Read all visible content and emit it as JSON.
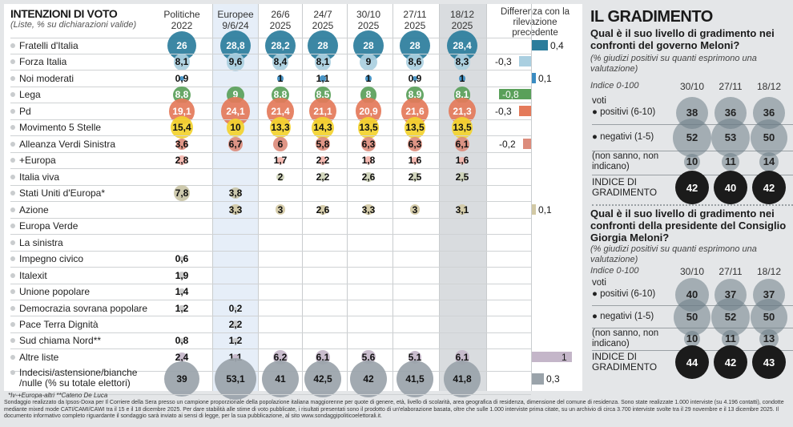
{
  "left": {
    "title": "INTENZIONI DI VOTO",
    "subtitle": "(Liste, % su dichiarazioni valide)",
    "diff_header": "Differenza con la rilevazione precedente",
    "footnote": "*Iv-+Europa-altri **Cateno De Luca"
  },
  "chart_data": {
    "type": "bubble-table",
    "columns": [
      {
        "l1": "Politiche",
        "l2": "2022"
      },
      {
        "l1": "Europee",
        "l2": "9/6/24"
      },
      {
        "l1": "26/6",
        "l2": "2025"
      },
      {
        "l1": "24/7",
        "l2": "2025"
      },
      {
        "l1": "30/10",
        "l2": "2025"
      },
      {
        "l1": "27/11",
        "l2": "2025"
      },
      {
        "l1": "18/12",
        "l2": "2025"
      }
    ],
    "rows": [
      {
        "name": "Fratelli d'Italia",
        "color": "#2b7d9c",
        "text": "#fff",
        "values": [
          "26",
          "28,8",
          "28,2",
          "28",
          "28",
          "28",
          "28,4"
        ],
        "diff": "0,4"
      },
      {
        "name": "Forza Italia",
        "color": "#aacfe0",
        "text": "#111",
        "values": [
          "8,1",
          "9,6",
          "8,4",
          "8,1",
          "9",
          "8,6",
          "8,3"
        ],
        "diff": "-0,3"
      },
      {
        "name": "Noi moderati",
        "color": "#3a8cc2",
        "text": "#111",
        "values": [
          "0,9",
          "",
          "1",
          "1,1",
          "1",
          "0,9",
          "1"
        ],
        "diff": "0,1"
      },
      {
        "name": "Lega",
        "color": "#5aa05a",
        "text": "#fff",
        "values": [
          "8,8",
          "9",
          "8,8",
          "8,5",
          "8",
          "8,9",
          "8,1"
        ],
        "diff": "-0,8"
      },
      {
        "name": "Pd",
        "color": "#e47a5a",
        "text": "#fff",
        "values": [
          "19,1",
          "24,1",
          "21,4",
          "21,1",
          "20,9",
          "21,6",
          "21,3"
        ],
        "diff": "-0,3"
      },
      {
        "name": "Movimento 5 Stelle",
        "color": "#f3d22e",
        "text": "#111",
        "values": [
          "15,4",
          "10",
          "13,3",
          "14,3",
          "13,5",
          "13,5",
          "13,5"
        ],
        "diff": ""
      },
      {
        "name": "Alleanza Verdi Sinistra",
        "color": "#dc8c7c",
        "text": "#111",
        "values": [
          "3,6",
          "6,7",
          "6",
          "5,8",
          "6,3",
          "6,3",
          "6,1"
        ],
        "diff": "-0,2"
      },
      {
        "name": "+Europa",
        "color": "#f2b3aa",
        "text": "#111",
        "values": [
          "2,8",
          "",
          "1,7",
          "2,2",
          "1,8",
          "1,6",
          "1,6"
        ],
        "diff": ""
      },
      {
        "name": "Italia viva",
        "color": "#cdd1b6",
        "text": "#111",
        "values": [
          "",
          "",
          "2",
          "2,2",
          "2,6",
          "2,5",
          "2,5"
        ],
        "diff": ""
      },
      {
        "name": "Stati Uniti d'Europa*",
        "color": "#c9c4a6",
        "text": "#111",
        "values": [
          "7,8",
          "3,8",
          "",
          "",
          "",
          "",
          ""
        ],
        "diff": ""
      },
      {
        "name": "Azione",
        "color": "#d2c9a4",
        "text": "#111",
        "values": [
          "",
          "3,3",
          "3",
          "2,6",
          "3,3",
          "3",
          "3,1"
        ],
        "diff": "0,1"
      },
      {
        "name": "Europa Verde",
        "color": "#9cc08a",
        "text": "#111",
        "values": [
          "",
          "",
          "",
          "",
          "",
          "",
          ""
        ],
        "diff": ""
      },
      {
        "name": "La sinistra",
        "color": "#d99090",
        "text": "#111",
        "values": [
          "",
          "",
          "",
          "",
          "",
          "",
          ""
        ],
        "diff": ""
      },
      {
        "name": "Impegno civico",
        "color": "#c8c8c8",
        "text": "#111",
        "values": [
          "0,6",
          "",
          "",
          "",
          "",
          "",
          ""
        ],
        "diff": ""
      },
      {
        "name": "Italexit",
        "color": "#c8c8c8",
        "text": "#111",
        "values": [
          "1,9",
          "",
          "",
          "",
          "",
          "",
          ""
        ],
        "diff": ""
      },
      {
        "name": "Unione popolare",
        "color": "#c8c8c8",
        "text": "#111",
        "values": [
          "1,4",
          "",
          "",
          "",
          "",
          "",
          ""
        ],
        "diff": ""
      },
      {
        "name": "Democrazia sovrana popolare",
        "color": "#c8c8c8",
        "text": "#111",
        "values": [
          "1,2",
          "0,2",
          "",
          "",
          "",
          "",
          ""
        ],
        "diff": ""
      },
      {
        "name": "Pace Terra Dignità",
        "color": "#c8c8c8",
        "text": "#111",
        "values": [
          "",
          "2,2",
          "",
          "",
          "",
          "",
          ""
        ],
        "diff": ""
      },
      {
        "name": "Sud chiama Nord**",
        "color": "#c8c8c8",
        "text": "#111",
        "values": [
          "0,8",
          "1,2",
          "",
          "",
          "",
          "",
          ""
        ],
        "diff": ""
      },
      {
        "name": "Altre liste",
        "color": "#c4b6c9",
        "text": "#111",
        "values": [
          "2,4",
          "1,1",
          "6,2",
          "6,1",
          "5,6",
          "5,1",
          "6,1"
        ],
        "diff": "1"
      },
      {
        "name": "Indecisi/astensione/bianche /nulle (% su totale elettori)",
        "color": "#9aa3aa",
        "text": "#111",
        "values": [
          "39",
          "53,1",
          "41",
          "42,5",
          "42",
          "41,5",
          "41,8"
        ],
        "diff": "0,3"
      }
    ]
  },
  "right": {
    "title": "IL GRADIMENTO",
    "panels": [
      {
        "question": "Qual è il suo livello di gradimento nei confronti del governo Meloni?",
        "note": "(% giudizi positivi su quanti esprimono una valutazione)",
        "scale": "Indice 0-100",
        "dates": [
          "30/10",
          "27/11",
          "18/12"
        ],
        "voti": "voti",
        "pos_label": "positivi (6-10)",
        "neg_label": "negativi (1-5)",
        "ns_label": "(non sanno, non indicano)",
        "idx_label": "INDICE DI GRADIMENTO",
        "pos": [
          "38",
          "36",
          "36"
        ],
        "neg": [
          "52",
          "53",
          "50"
        ],
        "ns": [
          "10",
          "11",
          "14"
        ],
        "idx": [
          "42",
          "40",
          "42"
        ]
      },
      {
        "question": "Qual è il suo livello di gradimento nei confronti della presidente del Consiglio Giorgia Meloni?",
        "note": "(% giudizi positivi su quanti esprimono una valutazione)",
        "scale": "Indice 0-100",
        "dates": [
          "30/10",
          "27/11",
          "18/12"
        ],
        "voti": "voti",
        "pos_label": "positivi (6-10)",
        "neg_label": "negativi (1-5)",
        "ns_label": "(non sanno, non indicano)",
        "idx_label": "INDICE DI GRADIMENTO",
        "pos": [
          "40",
          "37",
          "37"
        ],
        "neg": [
          "50",
          "52",
          "50"
        ],
        "ns": [
          "10",
          "11",
          "13"
        ],
        "idx": [
          "44",
          "42",
          "43"
        ]
      }
    ]
  },
  "footer": "Sondaggio realizzato da Ipsos-Doxa per Il Corriere della Sera presso un campione proporzionale della popolazione italiana maggiorenne per quote di genere, età, livello di scolarità, area geografica di residenza, dimensione del comune di residenza. Sono state realizzate 1.000 interviste (su 4.196 contatti), condotte mediante mixed mode CATI/CAMI/CAWI tra il 15 e il 18 dicembre 2025. Per dare stabilità alle stime di voto pubblicate, i risultati presentati sono il prodotto di un'elaborazione basata, oltre che sulle 1.000 interviste prima citate, su un archivio di circa 3.700 interviste svolte tra il 29 novembre e il 13 dicembre 2025. Il documento informativo completo riguardante il sondaggio sarà inviato ai sensi di legge, per la sua pubblicazione, al sito www.sondaggipoliticoelettorali.it."
}
